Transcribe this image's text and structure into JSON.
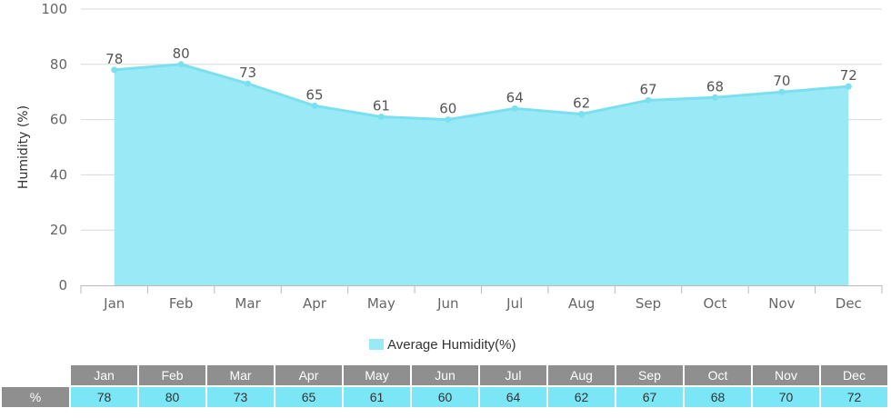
{
  "chart_data": {
    "type": "area",
    "categories": [
      "Jan",
      "Feb",
      "Mar",
      "Apr",
      "May",
      "Jun",
      "Jul",
      "Aug",
      "Sep",
      "Oct",
      "Nov",
      "Dec"
    ],
    "series": [
      {
        "name": "Average Humidity(%)",
        "values": [
          78,
          80,
          73,
          65,
          61,
          60,
          64,
          62,
          67,
          68,
          70,
          72
        ]
      }
    ],
    "ylabel": "Humidity (%)",
    "xlabel": "",
    "ylim": [
      0,
      100
    ],
    "yticks": [
      0,
      20,
      40,
      60,
      80,
      100
    ],
    "grid": true,
    "legend": "bottom-center",
    "fill_color": "#9ae9f6",
    "line_color": "#7ae0f0"
  },
  "legend": {
    "label": "Average Humidity(%)"
  },
  "table": {
    "row_label": "%",
    "headers": [
      "Jan",
      "Feb",
      "Mar",
      "Apr",
      "May",
      "Jun",
      "Jul",
      "Aug",
      "Sep",
      "Oct",
      "Nov",
      "Dec"
    ],
    "values": [
      "78",
      "80",
      "73",
      "65",
      "61",
      "60",
      "64",
      "62",
      "67",
      "68",
      "70",
      "72"
    ]
  }
}
